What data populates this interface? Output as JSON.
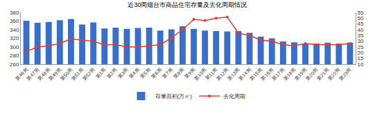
{
  "chart_data": {
    "type": "bar",
    "title": "近30周烟台市商品住宅存量及去化周期情况",
    "categories": [
      "第46周",
      "第47周",
      "第48周",
      "第49周",
      "第50周",
      "第51周",
      "第52周",
      "第1周",
      "第2周",
      "第3周",
      "第4周",
      "第5周",
      "第6周",
      "第7周",
      "第8周",
      "第9周",
      "第10周",
      "第11周",
      "第12周",
      "第13周",
      "第14周",
      "第15周",
      "第16周",
      "第17周",
      "第18周",
      "第19周",
      "第20周",
      "第21周",
      "第22周",
      "第23周"
    ],
    "series": [
      {
        "name": "存量面积(万㎡)",
        "type": "bar",
        "color": "#3a6ec7",
        "values": [
          361,
          356,
          358,
          362,
          365,
          352,
          357,
          343,
          345,
          342,
          344,
          345,
          338,
          341,
          348,
          342,
          338,
          337,
          336,
          337,
          333,
          324,
          320,
          313,
          311,
          307,
          308,
          310,
          308,
          310
        ]
      },
      {
        "name": "去化周期",
        "type": "line",
        "axis": "y2",
        "color": "#e03c31",
        "marker": "circle",
        "values": [
          21,
          25,
          26,
          28,
          32,
          31,
          30,
          27,
          27,
          25,
          25,
          26,
          27,
          33,
          40,
          49,
          48,
          50,
          51,
          37,
          35,
          31,
          30,
          27,
          26,
          28,
          27,
          27,
          27,
          28
        ]
      }
    ],
    "ylim": [
      260,
      380
    ],
    "yticks": [
      260,
      280,
      300,
      320,
      340,
      360,
      380
    ],
    "y2lim": [
      10,
      55
    ],
    "y2ticks": [
      10,
      15,
      20,
      25,
      30,
      35,
      40,
      45,
      50,
      55
    ],
    "grid": false,
    "legend": "bottom"
  }
}
